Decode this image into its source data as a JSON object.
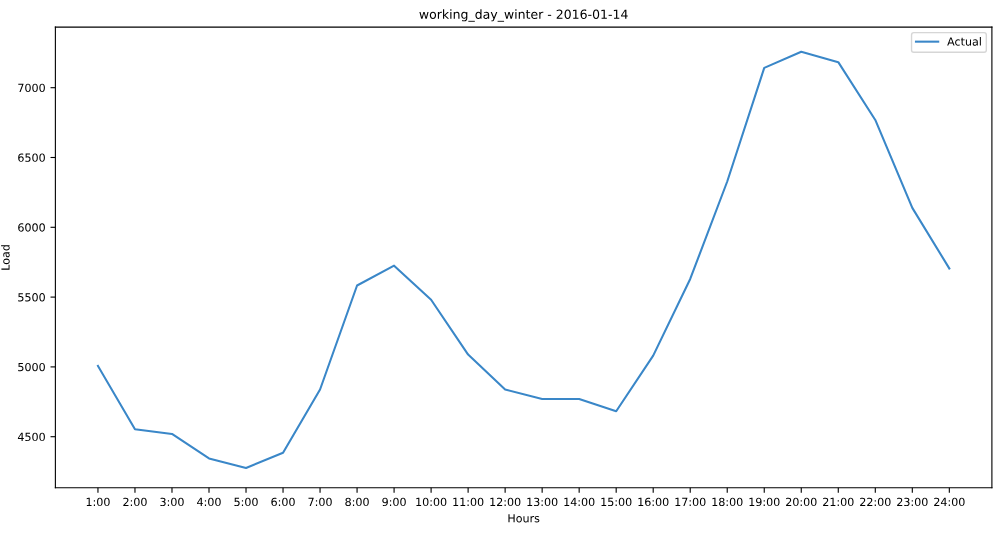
{
  "chart_data": {
    "type": "line",
    "title": "working_day_winter - 2016-01-14",
    "xlabel": "Hours",
    "ylabel": "Load",
    "categories": [
      "1:00",
      "2:00",
      "3:00",
      "4:00",
      "5:00",
      "6:00",
      "7:00",
      "8:00",
      "9:00",
      "10:00",
      "11:00",
      "12:00",
      "13:00",
      "14:00",
      "15:00",
      "16:00",
      "17:00",
      "18:00",
      "19:00",
      "20:00",
      "21:00",
      "22:00",
      "23:00",
      "24:00"
    ],
    "series": [
      {
        "name": "Actual",
        "color": "#3a87c8",
        "values": [
          5007,
          4554,
          4520,
          4344,
          4276,
          4385,
          4838,
          5583,
          5725,
          5481,
          5088,
          4838,
          4770,
          4770,
          4682,
          5081,
          5630,
          6328,
          7142,
          7257,
          7183,
          6769,
          6139,
          5705
        ]
      }
    ],
    "ylim": [
      4134,
      7434
    ],
    "yticks": [
      4500,
      5000,
      5500,
      6000,
      6500,
      7000
    ],
    "grid": false,
    "legend": "top right",
    "marker": "none",
    "line_style": "solid"
  }
}
